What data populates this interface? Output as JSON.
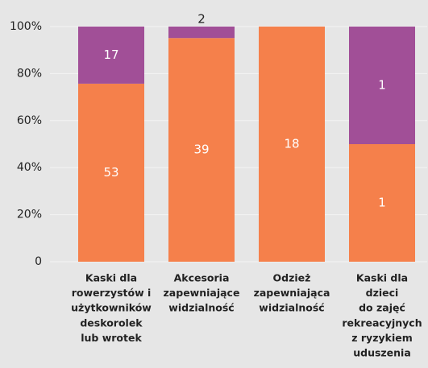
{
  "chart_data": {
    "type": "bar",
    "categories": [
      [
        "Kaski dla",
        "rowerzystów i",
        "użytkowników",
        "deskorolek",
        "lub wrotek"
      ],
      [
        "Akcesoria",
        "zapewniające",
        "widzialność"
      ],
      [
        "Odzież",
        "zapewniająca",
        "widzialność"
      ],
      [
        "Kaski dla",
        "dzieci",
        "do zajęć",
        "rekreacyjnych",
        "z ryzykiem",
        "uduszenia"
      ]
    ],
    "series": [
      {
        "color": "#f5804b",
        "values": [
          53,
          39,
          18,
          1
        ]
      },
      {
        "color": "#a14f97",
        "values": [
          17,
          2,
          null,
          1
        ]
      }
    ],
    "ylim": [
      0,
      100
    ],
    "yticks": [
      0,
      {
        "value": 20,
        "label": "20%"
      },
      {
        "value": 40,
        "label": "40%"
      },
      {
        "value": 60,
        "label": "60%"
      },
      {
        "value": 80,
        "label": "80%"
      },
      {
        "value": 100,
        "label": "100%"
      }
    ],
    "grid": true
  }
}
